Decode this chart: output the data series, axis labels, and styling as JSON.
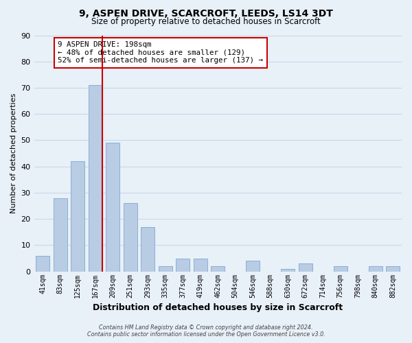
{
  "title": "9, ASPEN DRIVE, SCARCROFT, LEEDS, LS14 3DT",
  "subtitle": "Size of property relative to detached houses in Scarcroft",
  "xlabel": "Distribution of detached houses by size in Scarcroft",
  "ylabel": "Number of detached properties",
  "bar_labels": [
    "41sqm",
    "83sqm",
    "125sqm",
    "167sqm",
    "209sqm",
    "251sqm",
    "293sqm",
    "335sqm",
    "377sqm",
    "419sqm",
    "462sqm",
    "504sqm",
    "546sqm",
    "588sqm",
    "630sqm",
    "672sqm",
    "714sqm",
    "756sqm",
    "798sqm",
    "840sqm",
    "882sqm"
  ],
  "bar_values": [
    6,
    28,
    42,
    71,
    49,
    26,
    17,
    2,
    5,
    5,
    2,
    0,
    4,
    0,
    1,
    3,
    0,
    2,
    0,
    2,
    2
  ],
  "bar_color": "#b8cce4",
  "bar_edge_color": "#8bafd4",
  "grid_color": "#c8d8e8",
  "background_color": "#e8f0f8",
  "plot_background_color": "#e8f0f8",
  "property_line_color": "#cc0000",
  "annotation_line1": "9 ASPEN DRIVE: 198sqm",
  "annotation_line2": "← 48% of detached houses are smaller (129)",
  "annotation_line3": "52% of semi-detached houses are larger (137) →",
  "annotation_box_facecolor": "#ffffff",
  "annotation_box_edgecolor": "#cc0000",
  "ylim": [
    0,
    90
  ],
  "yticks": [
    0,
    10,
    20,
    30,
    40,
    50,
    60,
    70,
    80,
    90
  ],
  "footer_line1": "Contains HM Land Registry data © Crown copyright and database right 2024.",
  "footer_line2": "Contains public sector information licensed under the Open Government Licence v3.0."
}
